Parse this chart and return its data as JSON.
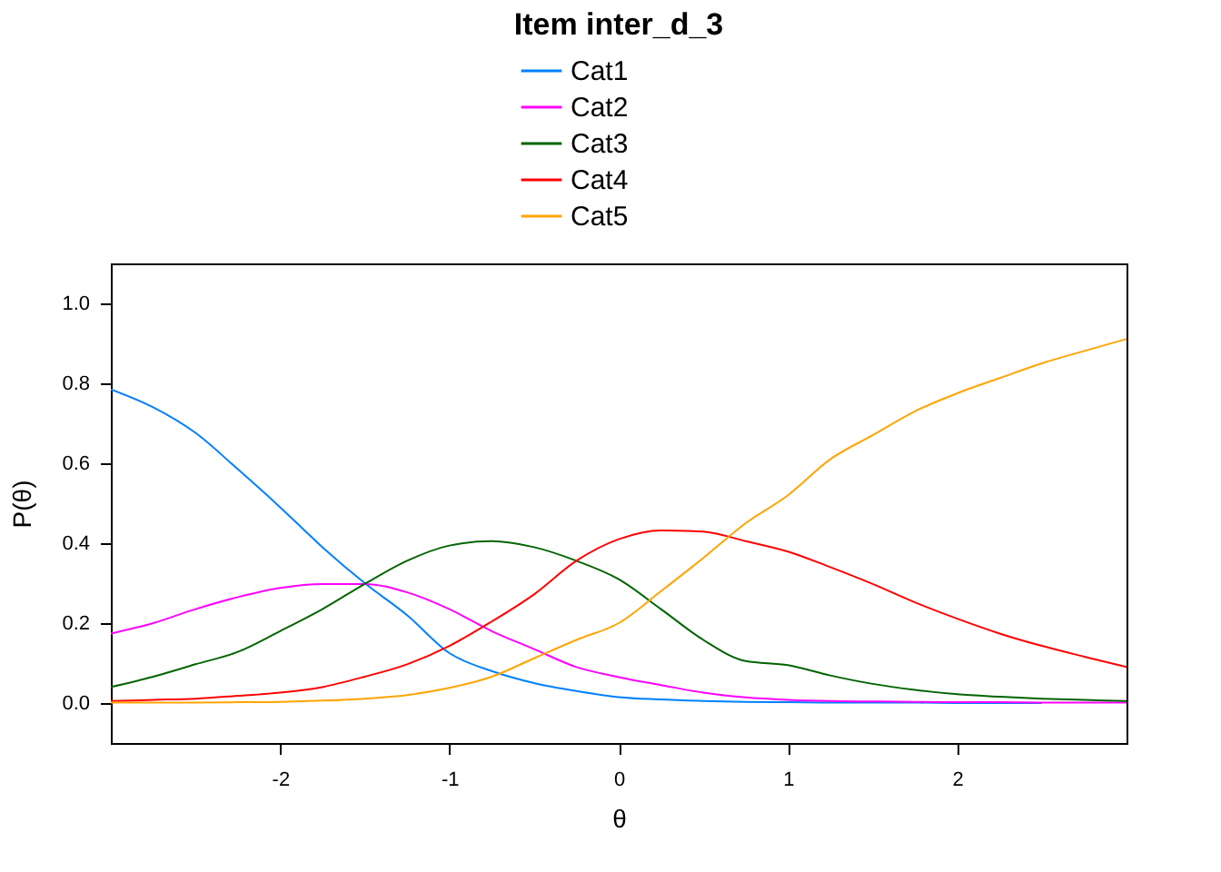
{
  "chart_data": {
    "type": "line",
    "title": "Item inter_d_3",
    "xlabel": "θ",
    "ylabel": "P(θ)",
    "x": [
      -3,
      -2.75,
      -2.5,
      -2.25,
      -2,
      -1.75,
      -1.5,
      -1.25,
      -1,
      -0.75,
      -0.5,
      -0.25,
      0,
      0.25,
      0.5,
      0.75,
      1,
      1.25,
      1.5,
      1.75,
      2,
      2.25,
      2.5,
      2.75,
      3
    ],
    "series": [
      {
        "name": "Cat1",
        "color": "#0080ff",
        "values": [
          0.785,
          0.74,
          0.676,
          0.585,
          0.49,
          0.39,
          0.3,
          0.22,
          0.125,
          0.08,
          0.05,
          0.03,
          0.015,
          0.009,
          0.005,
          0.003,
          0.002,
          0.001,
          0.001,
          0.001,
          0,
          0,
          0,
          null,
          null
        ]
      },
      {
        "name": "Cat2",
        "color": "#ff00ff",
        "values": [
          0.174,
          0.2,
          0.235,
          0.265,
          0.288,
          0.298,
          0.298,
          0.277,
          0.235,
          0.18,
          0.135,
          0.09,
          0.065,
          0.045,
          0.026,
          0.014,
          0.008,
          0.005,
          0.004,
          0.003,
          0.002,
          0.002,
          0.001,
          0.001,
          0.001
        ]
      },
      {
        "name": "Cat3",
        "color": "#006400",
        "values": [
          0.04,
          0.066,
          0.097,
          0.128,
          0.18,
          0.235,
          0.298,
          0.356,
          0.394,
          0.405,
          0.39,
          0.356,
          0.31,
          0.235,
          0.158,
          0.105,
          0.095,
          0.069,
          0.048,
          0.033,
          0.022,
          0.016,
          0.011,
          0.008,
          0.005
        ]
      },
      {
        "name": "Cat4",
        "color": "#ff0000",
        "values": [
          0.005,
          0.008,
          0.011,
          0.018,
          0.026,
          0.04,
          0.066,
          0.097,
          0.143,
          0.204,
          0.272,
          0.356,
          0.41,
          0.432,
          0.429,
          0.405,
          0.379,
          0.34,
          0.298,
          0.252,
          0.211,
          0.174,
          0.143,
          0.116,
          0.09
        ]
      },
      {
        "name": "Cat5",
        "color": "#ffa500",
        "values": [
          0.001,
          0.001,
          0.001,
          0.002,
          0.003,
          0.006,
          0.011,
          0.02,
          0.038,
          0.066,
          0.112,
          0.158,
          0.2,
          0.28,
          0.363,
          0.45,
          0.52,
          0.61,
          0.67,
          0.73,
          0.775,
          0.813,
          0.85,
          0.881,
          0.911
        ]
      }
    ],
    "xlim": [
      -3,
      3
    ],
    "ylim": [
      -0.1,
      1.1
    ],
    "xticks": [
      -2,
      -1,
      0,
      1,
      2
    ],
    "yticks": [
      {
        "value": 0,
        "label": "0.0"
      },
      {
        "value": 0.2,
        "label": "0.2"
      },
      {
        "value": 0.4,
        "label": "0.4"
      },
      {
        "value": 0.6,
        "label": "0.6"
      },
      {
        "value": 0.8,
        "label": "0.8"
      },
      {
        "value": 1,
        "label": "1.0"
      }
    ],
    "legend": "top",
    "grid": false,
    "marker": "none",
    "line_style": "solid"
  }
}
